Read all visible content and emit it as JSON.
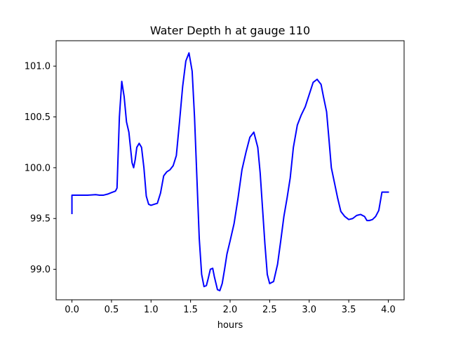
{
  "chart_data": {
    "type": "line",
    "title": "Water Depth h at gauge 110",
    "xlabel": "hours",
    "ylabel": "",
    "xlim": [
      -0.2,
      4.2
    ],
    "ylim": [
      98.7,
      101.25
    ],
    "xticks": [
      0.0,
      0.5,
      1.0,
      1.5,
      2.0,
      2.5,
      3.0,
      3.5,
      4.0
    ],
    "xtick_labels": [
      "0.0",
      "0.5",
      "1.0",
      "1.5",
      "2.0",
      "2.5",
      "3.0",
      "3.5",
      "4.0"
    ],
    "yticks": [
      99.0,
      99.5,
      100.0,
      100.5,
      101.0
    ],
    "ytick_labels": [
      "99.0",
      "99.5",
      "100.0",
      "100.5",
      "101.0"
    ],
    "grid": false,
    "series": [
      {
        "color": "#0000ff",
        "x": [
          0.0,
          0.0,
          0.1,
          0.2,
          0.3,
          0.35,
          0.4,
          0.45,
          0.5,
          0.55,
          0.57,
          0.6,
          0.63,
          0.66,
          0.69,
          0.72,
          0.74,
          0.76,
          0.78,
          0.8,
          0.82,
          0.85,
          0.88,
          0.91,
          0.94,
          0.97,
          1.0,
          1.04,
          1.08,
          1.12,
          1.16,
          1.2,
          1.24,
          1.28,
          1.32,
          1.36,
          1.4,
          1.44,
          1.48,
          1.52,
          1.55,
          1.58,
          1.61,
          1.64,
          1.67,
          1.7,
          1.72,
          1.75,
          1.78,
          1.8,
          1.84,
          1.87,
          1.9,
          1.93,
          1.96,
          2.0,
          2.05,
          2.1,
          2.15,
          2.2,
          2.25,
          2.3,
          2.35,
          2.38,
          2.41,
          2.44,
          2.47,
          2.5,
          2.55,
          2.6,
          2.64,
          2.68,
          2.72,
          2.76,
          2.8,
          2.85,
          2.9,
          2.95,
          3.0,
          3.05,
          3.1,
          3.15,
          3.18,
          3.22,
          3.25,
          3.28,
          3.32,
          3.36,
          3.4,
          3.45,
          3.5,
          3.55,
          3.6,
          3.65,
          3.7,
          3.73,
          3.76,
          3.8,
          3.84,
          3.88,
          3.92,
          3.96,
          4.0
        ],
        "y": [
          99.55,
          99.73,
          99.73,
          99.73,
          99.735,
          99.73,
          99.73,
          99.74,
          99.755,
          99.77,
          99.8,
          100.5,
          100.85,
          100.7,
          100.45,
          100.35,
          100.2,
          100.05,
          100.0,
          100.08,
          100.2,
          100.24,
          100.2,
          100.0,
          99.72,
          99.64,
          99.63,
          99.64,
          99.65,
          99.75,
          99.92,
          99.96,
          99.98,
          100.02,
          100.12,
          100.45,
          100.8,
          101.05,
          101.13,
          100.95,
          100.5,
          99.9,
          99.3,
          98.95,
          98.83,
          98.84,
          98.9,
          99.0,
          99.01,
          98.93,
          98.8,
          98.79,
          98.86,
          99.0,
          99.15,
          99.28,
          99.45,
          99.7,
          99.98,
          100.15,
          100.3,
          100.35,
          100.2,
          99.95,
          99.6,
          99.25,
          98.95,
          98.86,
          98.88,
          99.05,
          99.28,
          99.52,
          99.7,
          99.9,
          100.2,
          100.42,
          100.52,
          100.6,
          100.72,
          100.84,
          100.87,
          100.82,
          100.7,
          100.55,
          100.28,
          100.0,
          99.85,
          99.7,
          99.57,
          99.52,
          99.49,
          99.5,
          99.53,
          99.54,
          99.52,
          99.48,
          99.48,
          99.49,
          99.52,
          99.58,
          99.76,
          99.76,
          99.76
        ]
      }
    ]
  }
}
